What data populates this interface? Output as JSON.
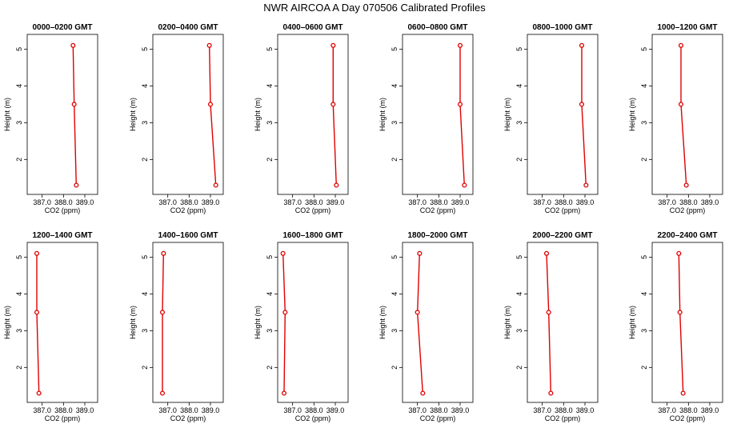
{
  "figure": {
    "title": "NWR AIRCOA A  Day 070506  Calibrated Profiles"
  },
  "chart_data": [
    {
      "type": "line",
      "title": "0000–0200 GMT",
      "xlabel": "CO2 (ppm)",
      "ylabel": "Height (m)",
      "xlim": [
        386.3,
        389.6
      ],
      "ylim": [
        1.05,
        5.4
      ],
      "xticks": [
        "387.0",
        "388.0",
        "389.0"
      ],
      "yticks": [
        "2",
        "3",
        "4",
        "5"
      ],
      "series": [
        {
          "x": [
            388.45,
            388.5,
            388.6
          ],
          "y": [
            5.1,
            3.5,
            1.3
          ]
        }
      ]
    },
    {
      "type": "line",
      "title": "0200–0400 GMT",
      "xlabel": "CO2 (ppm)",
      "ylabel": "Height (m)",
      "xlim": [
        386.3,
        389.6
      ],
      "ylim": [
        1.05,
        5.4
      ],
      "xticks": [
        "387.0",
        "388.0",
        "389.0"
      ],
      "yticks": [
        "2",
        "3",
        "4",
        "5"
      ],
      "series": [
        {
          "x": [
            388.95,
            389.0,
            389.25
          ],
          "y": [
            5.1,
            3.5,
            1.3
          ]
        }
      ]
    },
    {
      "type": "line",
      "title": "0400–0600 GMT",
      "xlabel": "CO2 (ppm)",
      "ylabel": "Height (m)",
      "xlim": [
        386.3,
        389.6
      ],
      "ylim": [
        1.05,
        5.4
      ],
      "xticks": [
        "387.0",
        "388.0",
        "389.0"
      ],
      "yticks": [
        "2",
        "3",
        "4",
        "5"
      ],
      "series": [
        {
          "x": [
            388.9,
            388.9,
            389.05
          ],
          "y": [
            5.1,
            3.5,
            1.3
          ]
        }
      ]
    },
    {
      "type": "line",
      "title": "0600–0800 GMT",
      "xlabel": "CO2 (ppm)",
      "ylabel": "Height (m)",
      "xlim": [
        386.3,
        389.6
      ],
      "ylim": [
        1.05,
        5.4
      ],
      "xticks": [
        "387.0",
        "388.0",
        "389.0"
      ],
      "yticks": [
        "2",
        "3",
        "4",
        "5"
      ],
      "series": [
        {
          "x": [
            389.0,
            389.0,
            389.2
          ],
          "y": [
            5.1,
            3.5,
            1.3
          ]
        }
      ]
    },
    {
      "type": "line",
      "title": "0800–1000 GMT",
      "xlabel": "CO2 (ppm)",
      "ylabel": "Height (m)",
      "xlim": [
        386.3,
        389.6
      ],
      "ylim": [
        1.05,
        5.4
      ],
      "xticks": [
        "387.0",
        "388.0",
        "389.0"
      ],
      "yticks": [
        "2",
        "3",
        "4",
        "5"
      ],
      "series": [
        {
          "x": [
            388.85,
            388.85,
            389.05
          ],
          "y": [
            5.1,
            3.5,
            1.3
          ]
        }
      ]
    },
    {
      "type": "line",
      "title": "1000–1200 GMT",
      "xlabel": "CO2 (ppm)",
      "ylabel": "Height (m)",
      "xlim": [
        386.3,
        389.6
      ],
      "ylim": [
        1.05,
        5.4
      ],
      "xticks": [
        "387.0",
        "388.0",
        "389.0"
      ],
      "yticks": [
        "2",
        "3",
        "4",
        "5"
      ],
      "series": [
        {
          "x": [
            387.65,
            387.65,
            387.9
          ],
          "y": [
            5.1,
            3.5,
            1.3
          ]
        }
      ]
    },
    {
      "type": "line",
      "title": "1200–1400 GMT",
      "xlabel": "CO2 (ppm)",
      "ylabel": "Height (m)",
      "xlim": [
        386.3,
        389.6
      ],
      "ylim": [
        1.05,
        5.4
      ],
      "xticks": [
        "387.0",
        "388.0",
        "389.0"
      ],
      "yticks": [
        "2",
        "3",
        "4",
        "5"
      ],
      "series": [
        {
          "x": [
            386.75,
            386.75,
            386.85
          ],
          "y": [
            5.1,
            3.5,
            1.3
          ]
        }
      ]
    },
    {
      "type": "line",
      "title": "1400–1600 GMT",
      "xlabel": "CO2 (ppm)",
      "ylabel": "Height (m)",
      "xlim": [
        386.3,
        389.6
      ],
      "ylim": [
        1.05,
        5.4
      ],
      "xticks": [
        "387.0",
        "388.0",
        "389.0"
      ],
      "yticks": [
        "2",
        "3",
        "4",
        "5"
      ],
      "series": [
        {
          "x": [
            386.8,
            386.75,
            386.75
          ],
          "y": [
            5.1,
            3.5,
            1.3
          ]
        }
      ]
    },
    {
      "type": "line",
      "title": "1600–1800 GMT",
      "xlabel": "CO2 (ppm)",
      "ylabel": "Height (m)",
      "xlim": [
        386.3,
        389.6
      ],
      "ylim": [
        1.05,
        5.4
      ],
      "xticks": [
        "387.0",
        "388.0",
        "389.0"
      ],
      "yticks": [
        "2",
        "3",
        "4",
        "5"
      ],
      "series": [
        {
          "x": [
            386.55,
            386.65,
            386.6
          ],
          "y": [
            5.1,
            3.5,
            1.3
          ]
        }
      ]
    },
    {
      "type": "line",
      "title": "1800–2000 GMT",
      "xlabel": "CO2 (ppm)",
      "ylabel": "Height (m)",
      "xlim": [
        386.3,
        389.6
      ],
      "ylim": [
        1.05,
        5.4
      ],
      "xticks": [
        "387.0",
        "388.0",
        "389.0"
      ],
      "yticks": [
        "2",
        "3",
        "4",
        "5"
      ],
      "series": [
        {
          "x": [
            387.1,
            387.0,
            387.25
          ],
          "y": [
            5.1,
            3.5,
            1.3
          ]
        }
      ]
    },
    {
      "type": "line",
      "title": "2000–2200 GMT",
      "xlabel": "CO2 (ppm)",
      "ylabel": "Height (m)",
      "xlim": [
        386.3,
        389.6
      ],
      "ylim": [
        1.05,
        5.4
      ],
      "xticks": [
        "387.0",
        "388.0",
        "389.0"
      ],
      "yticks": [
        "2",
        "3",
        "4",
        "5"
      ],
      "series": [
        {
          "x": [
            387.2,
            387.3,
            387.4
          ],
          "y": [
            5.1,
            3.5,
            1.3
          ]
        }
      ]
    },
    {
      "type": "line",
      "title": "2200–2400 GMT",
      "xlabel": "CO2 (ppm)",
      "ylabel": "Height (m)",
      "xlim": [
        386.3,
        389.6
      ],
      "ylim": [
        1.05,
        5.4
      ],
      "xticks": [
        "387.0",
        "388.0",
        "389.0"
      ],
      "yticks": [
        "2",
        "3",
        "4",
        "5"
      ],
      "series": [
        {
          "x": [
            387.55,
            387.6,
            387.75
          ],
          "y": [
            5.1,
            3.5,
            1.3
          ]
        }
      ]
    }
  ]
}
